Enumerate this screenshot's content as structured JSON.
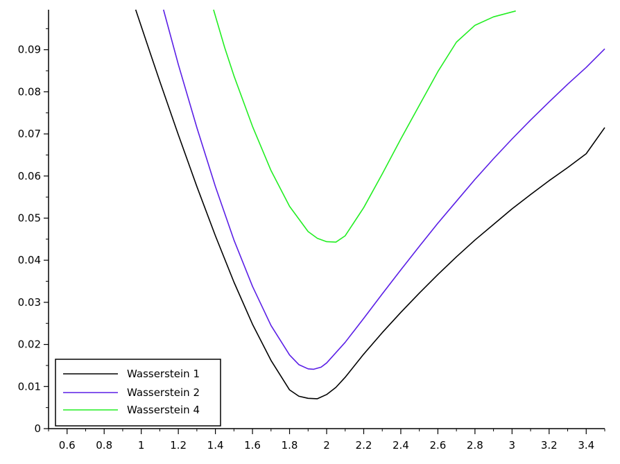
{
  "chart_data": {
    "type": "line",
    "title": "",
    "xlabel": "",
    "ylabel": "",
    "xlim": [
      0.5,
      3.5
    ],
    "ylim": [
      0,
      0.0995
    ],
    "x_ticks": [
      "0.6",
      "0.8",
      "1",
      "1.2",
      "1.4",
      "1.6",
      "1.8",
      "2",
      "2.2",
      "2.4",
      "2.6",
      "2.8",
      "3",
      "3.2",
      "3.4"
    ],
    "y_ticks": [
      "0",
      "0.01",
      "0.02",
      "0.03",
      "0.04",
      "0.05",
      "0.06",
      "0.07",
      "0.08",
      "0.09"
    ],
    "grid": false,
    "legend_position": "bottom-left",
    "series": [
      {
        "name": "Wasserstein 1",
        "color": "#000000",
        "points": [
          [
            0.97,
            0.0995
          ],
          [
            1.05,
            0.089
          ],
          [
            1.1,
            0.0825
          ],
          [
            1.2,
            0.0698
          ],
          [
            1.3,
            0.0575
          ],
          [
            1.4,
            0.0458
          ],
          [
            1.5,
            0.0348
          ],
          [
            1.6,
            0.0248
          ],
          [
            1.7,
            0.0162
          ],
          [
            1.8,
            0.0092
          ],
          [
            1.85,
            0.0077
          ],
          [
            1.9,
            0.0072
          ],
          [
            1.95,
            0.0071
          ],
          [
            2.0,
            0.0081
          ],
          [
            2.05,
            0.0098
          ],
          [
            2.1,
            0.0122
          ],
          [
            2.2,
            0.0177
          ],
          [
            2.3,
            0.0228
          ],
          [
            2.4,
            0.0276
          ],
          [
            2.5,
            0.0322
          ],
          [
            2.6,
            0.0366
          ],
          [
            2.7,
            0.0408
          ],
          [
            2.8,
            0.0448
          ],
          [
            2.9,
            0.0485
          ],
          [
            3.0,
            0.0522
          ],
          [
            3.1,
            0.0556
          ],
          [
            3.2,
            0.0589
          ],
          [
            3.3,
            0.062
          ],
          [
            3.4,
            0.0653
          ],
          [
            3.5,
            0.0715
          ]
        ]
      },
      {
        "name": "Wasserstein 2",
        "color": "#5a1ee6",
        "points": [
          [
            1.12,
            0.0995
          ],
          [
            1.2,
            0.0865
          ],
          [
            1.3,
            0.0715
          ],
          [
            1.4,
            0.0575
          ],
          [
            1.5,
            0.0448
          ],
          [
            1.6,
            0.0338
          ],
          [
            1.7,
            0.0245
          ],
          [
            1.8,
            0.0175
          ],
          [
            1.85,
            0.0152
          ],
          [
            1.9,
            0.0142
          ],
          [
            1.93,
            0.0141
          ],
          [
            1.97,
            0.0146
          ],
          [
            2.0,
            0.0156
          ],
          [
            2.1,
            0.0205
          ],
          [
            2.2,
            0.0262
          ],
          [
            2.3,
            0.032
          ],
          [
            2.4,
            0.0377
          ],
          [
            2.5,
            0.0433
          ],
          [
            2.6,
            0.0488
          ],
          [
            2.7,
            0.054
          ],
          [
            2.8,
            0.0592
          ],
          [
            2.9,
            0.0641
          ],
          [
            3.0,
            0.0688
          ],
          [
            3.1,
            0.0733
          ],
          [
            3.2,
            0.0776
          ],
          [
            3.3,
            0.0818
          ],
          [
            3.4,
            0.0858
          ],
          [
            3.5,
            0.0902
          ]
        ]
      },
      {
        "name": "Wasserstein 4",
        "color": "#22ee22",
        "points": [
          [
            1.39,
            0.0995
          ],
          [
            1.45,
            0.0905
          ],
          [
            1.5,
            0.0838
          ],
          [
            1.6,
            0.0718
          ],
          [
            1.7,
            0.0613
          ],
          [
            1.8,
            0.0528
          ],
          [
            1.9,
            0.0468
          ],
          [
            1.95,
            0.0452
          ],
          [
            2.0,
            0.0444
          ],
          [
            2.05,
            0.0443
          ],
          [
            2.1,
            0.0458
          ],
          [
            2.2,
            0.0525
          ],
          [
            2.3,
            0.0605
          ],
          [
            2.4,
            0.0688
          ],
          [
            2.5,
            0.0768
          ],
          [
            2.6,
            0.0848
          ],
          [
            2.7,
            0.0918
          ],
          [
            2.8,
            0.0958
          ],
          [
            2.9,
            0.0978
          ],
          [
            3.02,
            0.0992
          ]
        ]
      }
    ]
  }
}
